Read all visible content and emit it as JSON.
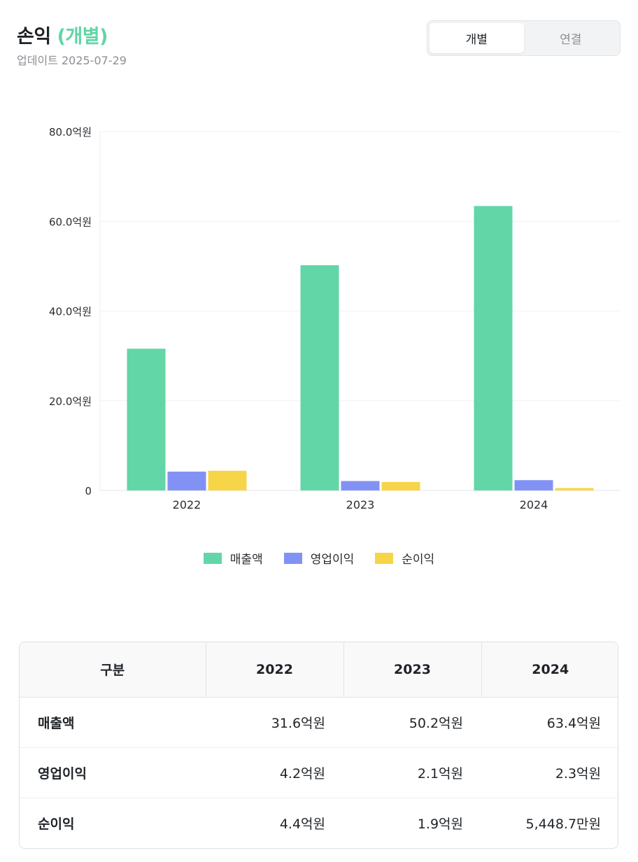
{
  "header": {
    "title": "손익",
    "title_suffix": "(개별)",
    "updated": "업데이트 2025-07-29"
  },
  "toggle": {
    "options": [
      "개별",
      "연결"
    ],
    "selected": "개별"
  },
  "chart_data": {
    "type": "bar",
    "categories": [
      "2022",
      "2023",
      "2024"
    ],
    "series": [
      {
        "name": "매출액",
        "values": [
          31.6,
          50.2,
          63.4
        ],
        "color": "#62d6a7"
      },
      {
        "name": "영업이익",
        "values": [
          4.2,
          2.1,
          2.3
        ],
        "color": "#8292f4"
      },
      {
        "name": "순이익",
        "values": [
          4.4,
          1.9,
          0.54487
        ],
        "color": "#f7d548"
      }
    ],
    "unit": "억원",
    "ylim": [
      0,
      80
    ],
    "yticks": [
      0,
      20,
      40,
      60,
      80
    ],
    "ytick_labels": [
      "0",
      "20.0억원",
      "40.0억원",
      "60.0억원",
      "80.0억원"
    ],
    "grid": true,
    "legend": "bottom-center"
  },
  "table": {
    "headers": [
      "구분",
      "2022",
      "2023",
      "2024"
    ],
    "rows": [
      {
        "label": "매출액",
        "values": [
          "31.6억원",
          "50.2억원",
          "63.4억원"
        ]
      },
      {
        "label": "영업이익",
        "values": [
          "4.2억원",
          "2.1억원",
          "2.3억원"
        ]
      },
      {
        "label": "순이익",
        "values": [
          "4.4억원",
          "1.9억원",
          "5,448.7만원"
        ]
      }
    ]
  }
}
